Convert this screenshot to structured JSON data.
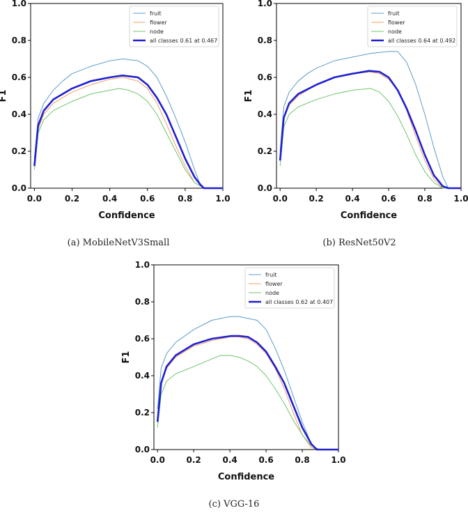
{
  "colors": {
    "fruit": "#5b9bc9",
    "flower": "#f0a060",
    "node": "#6fc46a",
    "all": "#1f1fd1"
  },
  "chart_data": [
    {
      "type": "line",
      "caption": "(a) MobileNetV3Small",
      "xlabel": "Confidence",
      "ylabel": "F1",
      "xlim": [
        -0.02,
        1.0
      ],
      "ylim": [
        0,
        1.0
      ],
      "xticks": [
        "0.0",
        "0.2",
        "0.4",
        "0.6",
        "0.8",
        "1.0"
      ],
      "yticks": [
        "0.0",
        "0.2",
        "0.4",
        "0.6",
        "0.8",
        "1.0"
      ],
      "legend_position": "top-right",
      "series": [
        {
          "name": "fruit",
          "key": "fruit",
          "x": [
            0,
            0.02,
            0.05,
            0.1,
            0.15,
            0.2,
            0.3,
            0.4,
            0.47,
            0.55,
            0.6,
            0.65,
            0.7,
            0.75,
            0.8,
            0.85,
            0.88,
            0.9,
            1.0
          ],
          "y": [
            0.16,
            0.38,
            0.46,
            0.53,
            0.58,
            0.62,
            0.66,
            0.69,
            0.7,
            0.69,
            0.66,
            0.6,
            0.5,
            0.38,
            0.25,
            0.1,
            0.02,
            0.0,
            0.0
          ]
        },
        {
          "name": "flower",
          "key": "flower",
          "x": [
            0,
            0.02,
            0.05,
            0.1,
            0.2,
            0.3,
            0.4,
            0.47,
            0.55,
            0.6,
            0.65,
            0.7,
            0.75,
            0.8,
            0.85,
            0.9,
            1.0
          ],
          "y": [
            0.12,
            0.32,
            0.4,
            0.46,
            0.52,
            0.56,
            0.59,
            0.6,
            0.58,
            0.54,
            0.46,
            0.35,
            0.23,
            0.12,
            0.03,
            0.0,
            0.0
          ]
        },
        {
          "name": "node",
          "key": "node",
          "x": [
            0,
            0.02,
            0.05,
            0.1,
            0.2,
            0.3,
            0.4,
            0.45,
            0.5,
            0.55,
            0.6,
            0.65,
            0.7,
            0.75,
            0.8,
            0.85,
            0.9,
            1.0
          ],
          "y": [
            0.1,
            0.3,
            0.37,
            0.42,
            0.47,
            0.51,
            0.53,
            0.54,
            0.53,
            0.51,
            0.47,
            0.4,
            0.3,
            0.2,
            0.1,
            0.03,
            0.0,
            0.0
          ]
        },
        {
          "name": "all classes 0.61 at 0.467",
          "key": "all",
          "bold": true,
          "x": [
            0,
            0.02,
            0.05,
            0.1,
            0.2,
            0.3,
            0.4,
            0.467,
            0.55,
            0.6,
            0.65,
            0.7,
            0.75,
            0.8,
            0.85,
            0.88,
            0.9,
            1.0
          ],
          "y": [
            0.12,
            0.34,
            0.42,
            0.48,
            0.54,
            0.58,
            0.6,
            0.61,
            0.6,
            0.56,
            0.49,
            0.4,
            0.28,
            0.16,
            0.06,
            0.02,
            0.0,
            0.0
          ]
        }
      ]
    },
    {
      "type": "line",
      "caption": "(b) ResNet50V2",
      "xlabel": "Confidence",
      "ylabel": "F1",
      "xlim": [
        -0.02,
        1.0
      ],
      "ylim": [
        0,
        1.0
      ],
      "xticks": [
        "0.0",
        "0.2",
        "0.4",
        "0.6",
        "0.8",
        "1.0"
      ],
      "yticks": [
        "0.0",
        "0.2",
        "0.4",
        "0.6",
        "0.8",
        "1.0"
      ],
      "legend_position": "top-right",
      "series": [
        {
          "name": "fruit",
          "key": "fruit",
          "x": [
            0,
            0.02,
            0.05,
            0.1,
            0.15,
            0.2,
            0.3,
            0.4,
            0.5,
            0.6,
            0.65,
            0.7,
            0.75,
            0.8,
            0.85,
            0.9,
            0.93,
            1.0
          ],
          "y": [
            0.2,
            0.44,
            0.52,
            0.58,
            0.62,
            0.65,
            0.69,
            0.71,
            0.73,
            0.74,
            0.74,
            0.68,
            0.56,
            0.4,
            0.22,
            0.06,
            0.0,
            0.0
          ]
        },
        {
          "name": "flower",
          "key": "flower",
          "x": [
            0,
            0.02,
            0.05,
            0.1,
            0.2,
            0.3,
            0.4,
            0.5,
            0.55,
            0.6,
            0.65,
            0.7,
            0.75,
            0.8,
            0.85,
            0.9,
            1.0
          ],
          "y": [
            0.15,
            0.38,
            0.45,
            0.5,
            0.56,
            0.6,
            0.62,
            0.63,
            0.62,
            0.59,
            0.53,
            0.42,
            0.28,
            0.15,
            0.05,
            0.0,
            0.0
          ]
        },
        {
          "name": "node",
          "key": "node",
          "x": [
            0,
            0.02,
            0.05,
            0.1,
            0.2,
            0.3,
            0.4,
            0.5,
            0.55,
            0.6,
            0.65,
            0.7,
            0.75,
            0.8,
            0.85,
            0.9,
            1.0
          ],
          "y": [
            0.12,
            0.33,
            0.4,
            0.44,
            0.48,
            0.51,
            0.53,
            0.54,
            0.52,
            0.47,
            0.39,
            0.29,
            0.18,
            0.09,
            0.03,
            0.0,
            0.0
          ]
        },
        {
          "name": "all classes 0.64 at 0.492",
          "key": "all",
          "bold": true,
          "x": [
            0,
            0.02,
            0.05,
            0.1,
            0.2,
            0.3,
            0.4,
            0.492,
            0.55,
            0.6,
            0.65,
            0.7,
            0.75,
            0.8,
            0.85,
            0.9,
            0.93,
            1.0
          ],
          "y": [
            0.15,
            0.38,
            0.46,
            0.51,
            0.56,
            0.6,
            0.62,
            0.635,
            0.63,
            0.6,
            0.53,
            0.43,
            0.31,
            0.18,
            0.07,
            0.01,
            0.0,
            0.0
          ]
        }
      ]
    },
    {
      "type": "line",
      "caption": "(c) VGG-16",
      "xlabel": "Confidence",
      "ylabel": "F1",
      "xlim": [
        -0.02,
        1.0
      ],
      "ylim": [
        0,
        1.0
      ],
      "xticks": [
        "0.0",
        "0.2",
        "0.4",
        "0.6",
        "0.8",
        "1.0"
      ],
      "yticks": [
        "0.0",
        "0.2",
        "0.4",
        "0.6",
        "0.8",
        "1.0"
      ],
      "legend_position": "top-right",
      "series": [
        {
          "name": "fruit",
          "key": "fruit",
          "x": [
            0,
            0.02,
            0.05,
            0.1,
            0.2,
            0.3,
            0.4,
            0.45,
            0.5,
            0.55,
            0.6,
            0.65,
            0.7,
            0.75,
            0.8,
            0.85,
            0.88,
            1.0
          ],
          "y": [
            0.22,
            0.44,
            0.52,
            0.58,
            0.65,
            0.7,
            0.72,
            0.72,
            0.71,
            0.7,
            0.65,
            0.55,
            0.43,
            0.29,
            0.15,
            0.03,
            0.0,
            0.0
          ]
        },
        {
          "name": "flower",
          "key": "flower",
          "x": [
            0,
            0.02,
            0.05,
            0.1,
            0.2,
            0.3,
            0.4,
            0.45,
            0.5,
            0.55,
            0.6,
            0.65,
            0.7,
            0.75,
            0.8,
            0.85,
            0.9,
            1.0
          ],
          "y": [
            0.15,
            0.36,
            0.44,
            0.5,
            0.56,
            0.59,
            0.61,
            0.61,
            0.6,
            0.57,
            0.52,
            0.44,
            0.33,
            0.2,
            0.08,
            0.01,
            0.0,
            0.0
          ]
        },
        {
          "name": "node",
          "key": "node",
          "x": [
            0,
            0.02,
            0.05,
            0.1,
            0.2,
            0.3,
            0.35,
            0.4,
            0.45,
            0.5,
            0.55,
            0.6,
            0.65,
            0.7,
            0.75,
            0.8,
            0.85,
            0.9,
            1.0
          ],
          "y": [
            0.12,
            0.3,
            0.37,
            0.41,
            0.45,
            0.49,
            0.51,
            0.51,
            0.5,
            0.48,
            0.45,
            0.4,
            0.33,
            0.25,
            0.16,
            0.08,
            0.02,
            0.0,
            0.0
          ]
        },
        {
          "name": "all classes 0.62 at 0.407",
          "key": "all",
          "bold": true,
          "x": [
            0,
            0.02,
            0.05,
            0.1,
            0.2,
            0.3,
            0.407,
            0.45,
            0.5,
            0.55,
            0.6,
            0.65,
            0.7,
            0.75,
            0.8,
            0.85,
            0.88,
            1.0
          ],
          "y": [
            0.15,
            0.36,
            0.45,
            0.51,
            0.57,
            0.6,
            0.615,
            0.615,
            0.61,
            0.58,
            0.53,
            0.45,
            0.36,
            0.24,
            0.12,
            0.03,
            0.0,
            0.0
          ]
        }
      ]
    }
  ]
}
